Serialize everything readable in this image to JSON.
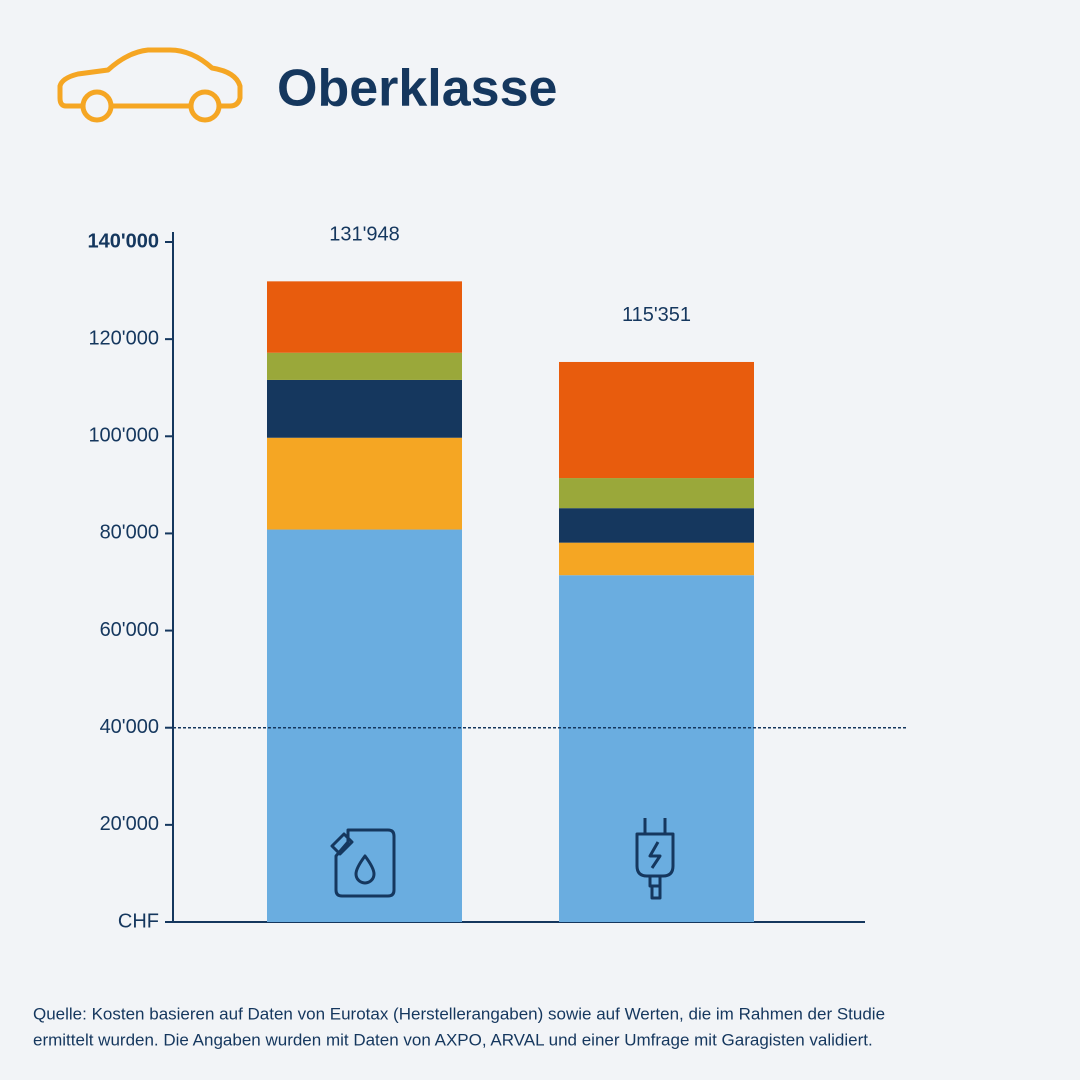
{
  "chart_data": {
    "type": "stacked-bar",
    "title": "Oberklasse",
    "categories": [
      null,
      null
    ],
    "series": [
      {
        "color": "#6aade0",
        "values": [
          80800,
          71400
        ]
      },
      {
        "color": "#f5a623",
        "values": [
          18900,
          6700
        ]
      },
      {
        "color": "#15375e",
        "values": [
          11900,
          7100
        ]
      },
      {
        "color": "#9aa83a",
        "values": [
          5600,
          6200
        ]
      },
      {
        "color": "#e85c0d",
        "values": [
          14700,
          23900
        ]
      }
    ],
    "totals": [
      131948,
      115351
    ],
    "total_labels": [
      "131'948",
      "115'351"
    ],
    "ylim": [
      0,
      140000
    ],
    "yticks": [
      {
        "value": 0,
        "label": "CHF"
      },
      {
        "value": 20000,
        "label": "20'000"
      },
      {
        "value": 40000,
        "label": "40'000"
      },
      {
        "value": 60000,
        "label": "60'000"
      },
      {
        "value": 80000,
        "label": "80'000"
      },
      {
        "value": 100000,
        "label": "100'000"
      },
      {
        "value": 120000,
        "label": "120'000"
      },
      {
        "value": 140000,
        "label": "140'000"
      }
    ],
    "reference_line": 40000,
    "source": [
      "Quelle: Kosten basieren auf Daten von Eurotax (Herstellerangaben) sowie auf Werten, die im Rahmen der Studie",
      "ermittelt wurden. Die Angaben wurden mit Daten von AXPO, ARVAL und einer Umfrage mit Garagisten validiert."
    ]
  }
}
